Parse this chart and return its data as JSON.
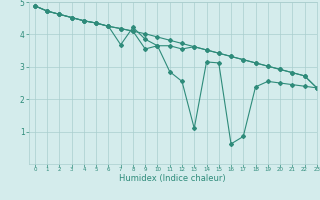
{
  "line1_x": [
    0,
    1,
    2,
    3,
    4,
    5,
    6,
    7,
    8,
    9,
    10,
    11,
    12,
    13,
    14,
    15,
    16,
    17,
    18,
    19,
    20,
    21,
    22,
    23
  ],
  "line1_y": [
    4.88,
    4.72,
    4.62,
    4.52,
    4.42,
    4.35,
    4.25,
    4.18,
    4.1,
    4.02,
    3.92,
    3.82,
    3.72,
    3.62,
    3.52,
    3.42,
    3.32,
    3.22,
    3.12,
    3.02,
    2.92,
    2.82,
    2.72,
    2.35
  ],
  "line2_x": [
    0,
    1,
    2,
    3,
    4,
    5,
    6,
    7,
    8,
    9,
    10,
    11,
    12,
    13,
    14,
    15,
    16,
    17,
    18,
    19,
    20,
    21,
    22,
    23
  ],
  "line2_y": [
    4.88,
    4.72,
    4.62,
    4.52,
    4.42,
    4.35,
    4.25,
    3.68,
    4.22,
    3.85,
    3.65,
    2.85,
    2.55,
    1.1,
    3.15,
    3.12,
    0.62,
    0.85,
    2.38,
    2.55,
    2.5,
    2.45,
    2.4,
    2.35
  ],
  "line3_x": [
    0,
    1,
    2,
    3,
    4,
    5,
    6,
    7,
    8,
    9,
    10,
    11,
    12,
    13,
    14,
    15,
    16,
    17,
    18,
    19,
    20,
    21,
    22,
    23
  ],
  "line3_y": [
    4.88,
    4.72,
    4.62,
    4.52,
    4.42,
    4.35,
    4.25,
    4.18,
    4.1,
    3.55,
    3.65,
    3.65,
    3.55,
    3.62,
    3.52,
    3.42,
    3.32,
    3.22,
    3.12,
    3.02,
    2.92,
    2.82,
    2.72,
    2.35
  ],
  "line_color": "#2e8b7a",
  "bg_color": "#d4ecec",
  "grid_color": "#aacece",
  "xlabel": "Humidex (Indice chaleur)",
  "xlim": [
    -0.5,
    23
  ],
  "ylim": [
    0,
    5
  ],
  "xticks": [
    0,
    1,
    2,
    3,
    4,
    5,
    6,
    7,
    8,
    9,
    10,
    11,
    12,
    13,
    14,
    15,
    16,
    17,
    18,
    19,
    20,
    21,
    22,
    23
  ],
  "yticks": [
    1,
    2,
    3,
    4,
    5
  ],
  "marker": "D",
  "markersize": 2.0,
  "linewidth": 0.8,
  "xlabel_fontsize": 6.0,
  "xtick_fontsize": 4.0,
  "ytick_fontsize": 5.5
}
